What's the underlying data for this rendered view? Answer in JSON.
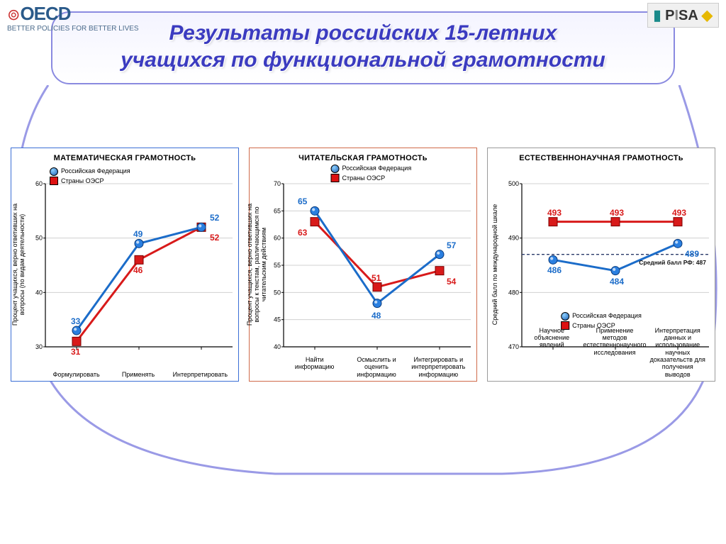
{
  "header": {
    "oecd_main": "OECD",
    "oecd_sub": "BETTER POLICIES FOR BETTER LIVES",
    "pisa": "PISA"
  },
  "title": {
    "line1": "Результаты российских 15-летних",
    "line2": "учащихся по функциональной грамотности"
  },
  "legend_labels": {
    "series1": "Российская Федерация",
    "series2": "Страны ОЭСР"
  },
  "colors": {
    "series1_line": "#1b6cc9",
    "series1_marker": "#2a7fe0",
    "series2_line": "#d81a1a",
    "series2_marker": "#d81a1a",
    "axis": "#000000",
    "grid": "#d0d0d0",
    "dashed": "#2a3a6a"
  },
  "charts": [
    {
      "id": "math",
      "title": "МАТЕМАТИЧЕСКАЯ  ГРАМОТНОСТь",
      "border": "#3b6fd6",
      "y_axis_label": "Процент учащихся, верно ответивших на\nвопросы (по видам деятельности)",
      "ylim": [
        30,
        60
      ],
      "ytick_step": 10,
      "categories": [
        "Формулировать",
        "Применять",
        "Интерпретировать"
      ],
      "series1": [
        33,
        49,
        52
      ],
      "series2": [
        31,
        46,
        52
      ],
      "s1_label_color": "#1b6cc9",
      "s2_label_color": "#d81a1a",
      "legend_pos": "top-left",
      "line_width": 3,
      "marker_size": 12
    },
    {
      "id": "reading",
      "title": "ЧИТАТЕЛЬСКАЯ  ГРАМОТНОСТь",
      "border": "#d06a4a",
      "y_axis_label": "Процент учащихся, верно ответивших на\nвопросы к текстам, различающимся по\nчитательским действиям",
      "ylim": [
        40,
        70
      ],
      "ytick_step": 5,
      "categories": [
        "Найти информацию",
        "Осмыслить и оценить информацию",
        "Интегрировать и интерпретировать информацию"
      ],
      "series1": [
        65,
        48,
        57
      ],
      "series2": [
        63,
        51,
        54
      ],
      "s1_label_color": "#1b6cc9",
      "s2_label_color": "#d81a1a",
      "legend_pos": "top-center",
      "line_width": 3,
      "marker_size": 12
    },
    {
      "id": "science",
      "title": "ЕСТЕСТВЕННОНАУЧНАЯ  ГРАМОТНОСТь",
      "border": "#9a9a9a",
      "y_axis_label": "Средний балл по международной шкале",
      "ylim": [
        470,
        500
      ],
      "ytick_step": 10,
      "categories": [
        "Научное объяснение явлений",
        "Применение методов естественнонаучного исследования",
        "Интерпретация данных и использование научных доказательств для получения выводов"
      ],
      "series1": [
        486,
        484,
        489
      ],
      "series2": [
        493,
        493,
        493
      ],
      "s1_label_color": "#1b6cc9",
      "s2_label_color": "#d81a1a",
      "legend_pos": "bottom-center",
      "dashed_line_y": 487,
      "dashed_note": "Средний балл РФ: 487",
      "line_width": 3,
      "marker_size": 12
    }
  ]
}
